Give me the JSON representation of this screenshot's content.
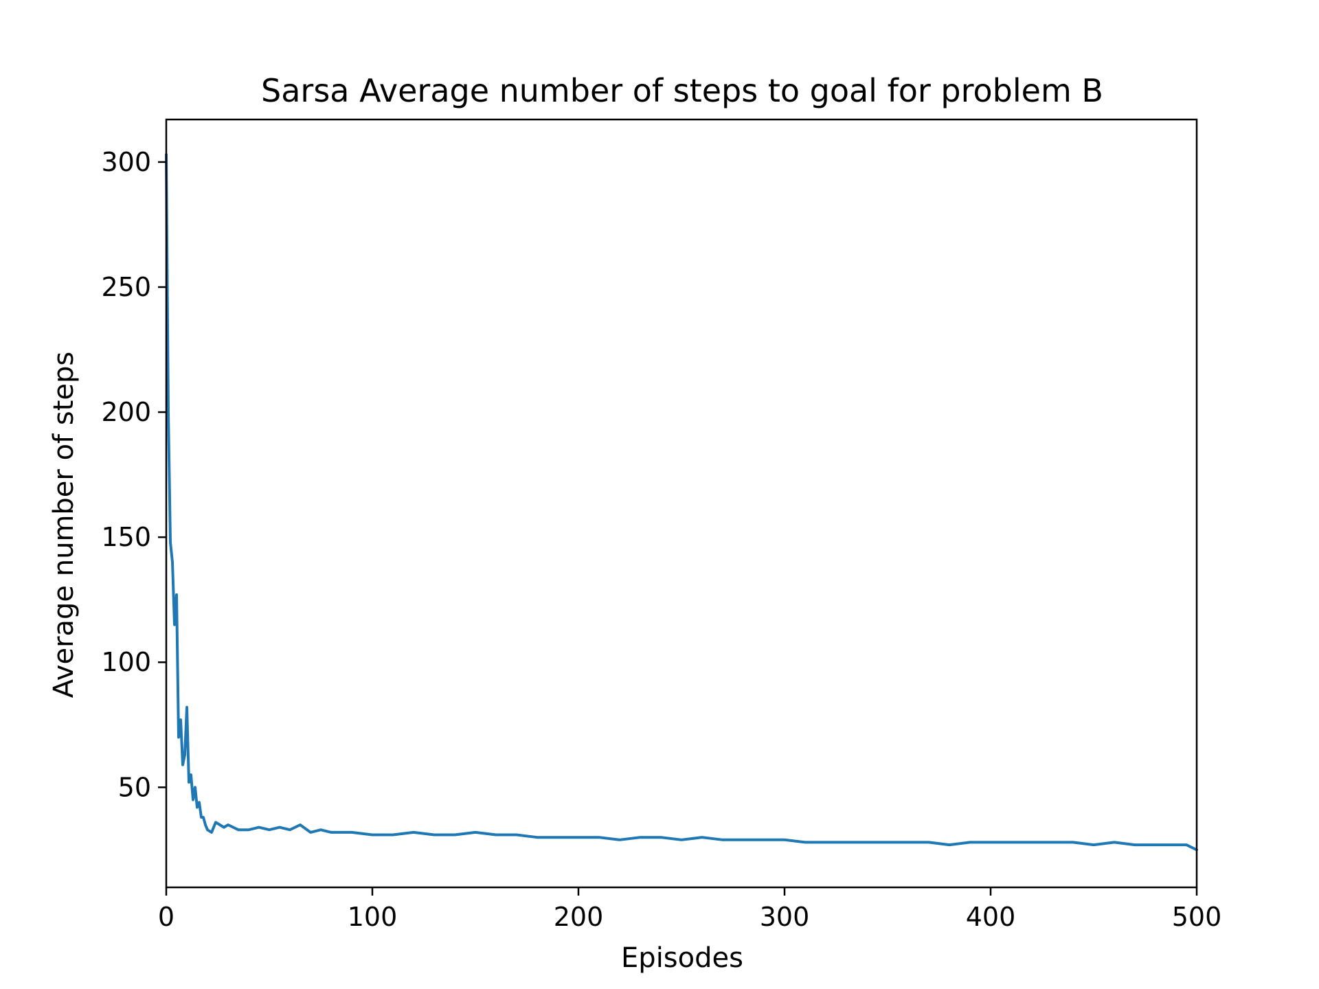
{
  "chart_data": {
    "type": "line",
    "title": "Sarsa Average number of steps to goal for problem B",
    "xlabel": "Episodes",
    "ylabel": "Average number of steps",
    "xlim": [
      0,
      500
    ],
    "ylim": [
      10,
      317
    ],
    "grid": false,
    "legend": "none",
    "color": "#1f77b4",
    "x_ticks": [
      {
        "value": 0,
        "label": "0"
      },
      {
        "value": 100,
        "label": "100"
      },
      {
        "value": 200,
        "label": "200"
      },
      {
        "value": 300,
        "label": "300"
      },
      {
        "value": 400,
        "label": "400"
      },
      {
        "value": 500,
        "label": "500"
      }
    ],
    "y_ticks": [
      {
        "value": 50,
        "label": "50"
      },
      {
        "value": 100,
        "label": "100"
      },
      {
        "value": 150,
        "label": "150"
      },
      {
        "value": 200,
        "label": "200"
      },
      {
        "value": 250,
        "label": "250"
      },
      {
        "value": 300,
        "label": "300"
      }
    ],
    "series": [
      {
        "name": "Sarsa",
        "x": [
          0,
          1,
          2,
          3,
          4,
          5,
          6,
          7,
          8,
          9,
          10,
          11,
          12,
          13,
          14,
          15,
          16,
          17,
          18,
          19,
          20,
          22,
          24,
          26,
          28,
          30,
          35,
          40,
          45,
          50,
          55,
          60,
          65,
          70,
          75,
          80,
          90,
          100,
          110,
          120,
          130,
          140,
          150,
          160,
          170,
          180,
          190,
          200,
          210,
          220,
          230,
          240,
          250,
          260,
          270,
          280,
          290,
          300,
          310,
          320,
          330,
          340,
          350,
          360,
          370,
          380,
          390,
          400,
          410,
          420,
          430,
          440,
          450,
          460,
          470,
          480,
          490,
          495,
          500
        ],
        "values": [
          303,
          200,
          148,
          140,
          115,
          127,
          70,
          77,
          59,
          63,
          82,
          52,
          55,
          45,
          50,
          42,
          44,
          38,
          38,
          35,
          33,
          32,
          36,
          35,
          34,
          35,
          33,
          33,
          34,
          33,
          34,
          33,
          35,
          32,
          33,
          32,
          32,
          31,
          31,
          32,
          31,
          31,
          32,
          31,
          31,
          30,
          30,
          30,
          30,
          29,
          30,
          30,
          29,
          30,
          29,
          29,
          29,
          29,
          28,
          28,
          28,
          28,
          28,
          28,
          28,
          27,
          28,
          28,
          28,
          28,
          28,
          28,
          27,
          28,
          27,
          27,
          27,
          27,
          25
        ]
      }
    ]
  }
}
